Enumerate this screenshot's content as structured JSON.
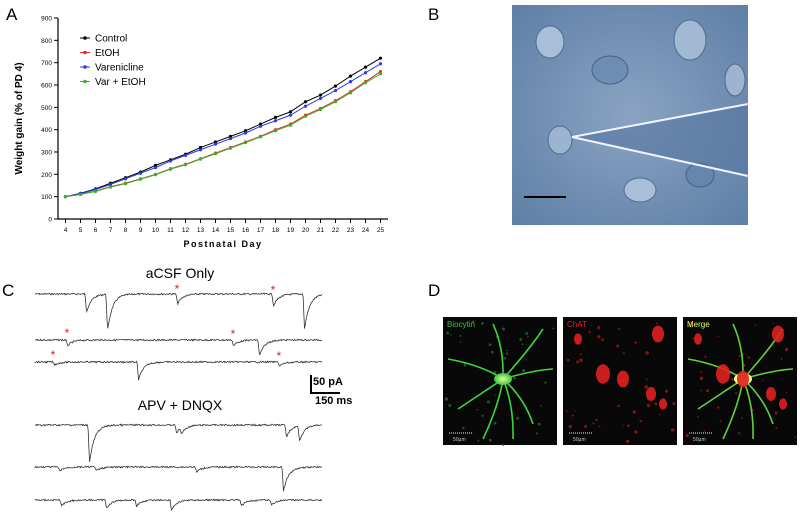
{
  "panels": {
    "a": "A",
    "b": "B",
    "c": "C",
    "d": "D"
  },
  "chart_data": {
    "type": "line",
    "xlabel": "Postnatal Day",
    "ylabel": "Weight gain (% of PD 4)",
    "x": [
      4,
      5,
      6,
      7,
      8,
      9,
      10,
      11,
      12,
      13,
      14,
      15,
      16,
      17,
      18,
      19,
      20,
      21,
      22,
      23,
      24,
      25
    ],
    "xlim": [
      3.5,
      25.5
    ],
    "xticks": [
      4,
      5,
      6,
      7,
      8,
      9,
      10,
      11,
      12,
      13,
      14,
      15,
      16,
      17,
      18,
      19,
      20,
      21,
      22,
      23,
      24,
      25
    ],
    "ylim": [
      0,
      900
    ],
    "yticks": [
      0,
      100,
      200,
      300,
      400,
      500,
      600,
      700,
      800,
      900
    ],
    "legend": "upper left",
    "series": [
      {
        "name": "Control",
        "color": "#000000",
        "values": [
          100,
          115,
          135,
          160,
          185,
          210,
          240,
          265,
          290,
          320,
          345,
          370,
          395,
          425,
          455,
          480,
          525,
          555,
          595,
          640,
          680,
          720
        ]
      },
      {
        "name": "EtOH",
        "color": "#e0302a",
        "values": [
          100,
          110,
          125,
          145,
          160,
          180,
          200,
          225,
          245,
          270,
          295,
          320,
          345,
          370,
          400,
          425,
          465,
          495,
          530,
          570,
          615,
          660
        ]
      },
      {
        "name": "Varenicline",
        "color": "#2a3be0",
        "values": [
          100,
          113,
          132,
          155,
          180,
          205,
          230,
          260,
          285,
          310,
          335,
          360,
          385,
          415,
          440,
          465,
          505,
          540,
          575,
          615,
          655,
          695
        ]
      },
      {
        "name": "Var + EtOH",
        "color": "#3cb02a",
        "values": [
          100,
          110,
          123,
          143,
          158,
          178,
          198,
          223,
          243,
          268,
          292,
          317,
          342,
          368,
          395,
          420,
          460,
          490,
          525,
          565,
          610,
          650
        ]
      }
    ]
  },
  "traces": {
    "top_label": "aCSF Only",
    "bottom_label": "APV + DNQX",
    "scale_y": "50 pA",
    "scale_x": "150 ms"
  },
  "images": {
    "labels": [
      "Biocytin",
      "ChAT",
      "Merge"
    ],
    "scale": "50µm"
  }
}
